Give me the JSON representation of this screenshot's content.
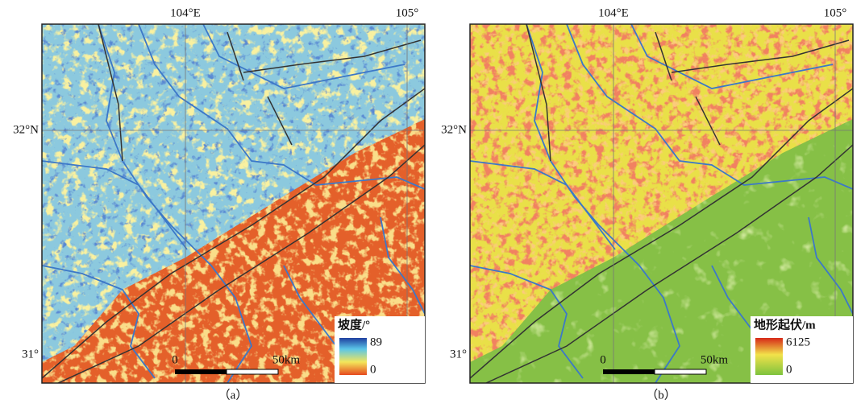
{
  "panels": [
    {
      "caption": "（a）",
      "lon_labels": [
        "104°E",
        "105°"
      ],
      "lat_labels": [
        "32°N",
        "31°"
      ],
      "legend": {
        "title": "坡度/°",
        "max": 89,
        "min": 0
      },
      "scale_bar": {
        "start": "0",
        "end": "50km"
      }
    },
    {
      "caption": "（b）",
      "lon_labels": [
        "104°E",
        "105°"
      ],
      "lat_labels": [
        "32°N",
        "31°"
      ],
      "legend": {
        "title": "地形起伏/m",
        "max": 6125,
        "min": 0
      },
      "scale_bar": {
        "start": "0",
        "end": "50km"
      }
    }
  ]
}
